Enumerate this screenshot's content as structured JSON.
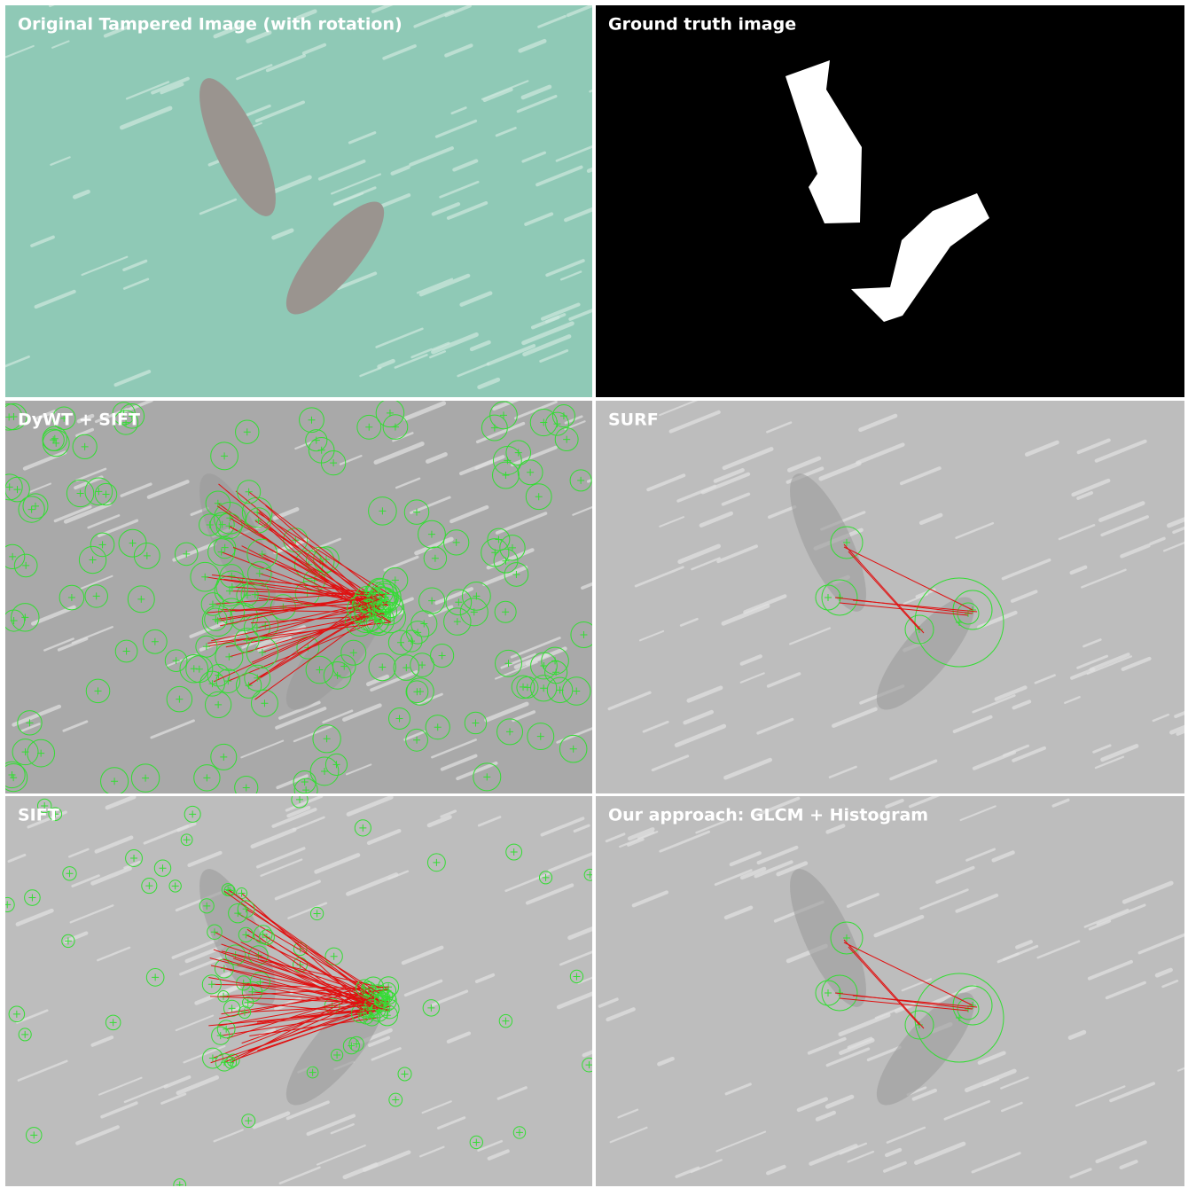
{
  "panels": [
    {
      "title": "Original Tampered Image (with rotation)"
    },
    {
      "title": "Ground truth image"
    },
    {
      "title": "DyWT + SIFT"
    },
    {
      "title": "SURF"
    },
    {
      "title": "SIFT"
    },
    {
      "title": "Our approach: GLCM + Histogram"
    }
  ]
}
